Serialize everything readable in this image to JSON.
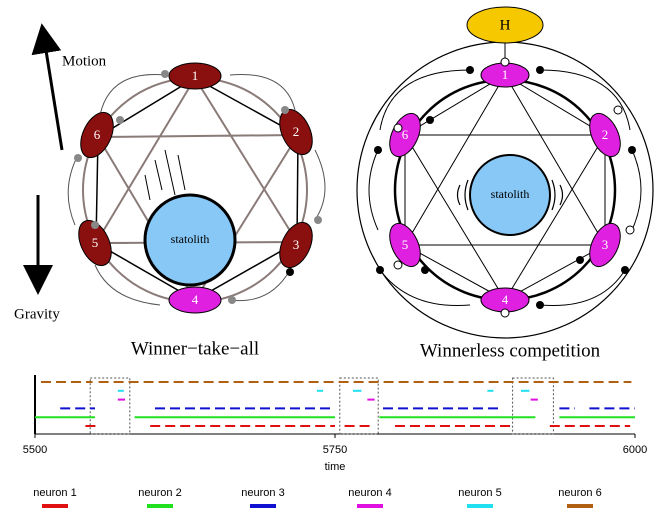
{
  "labels": {
    "motion": "Motion",
    "gravity": "Gravity"
  },
  "left_diagram": {
    "caption": "Winner−take−all",
    "statolith": "statolith",
    "neurons": [
      "1",
      "2",
      "3",
      "4",
      "5",
      "6"
    ]
  },
  "right_diagram": {
    "caption": "Winnerless competition",
    "statolith": "statolith",
    "hub": "H",
    "neurons": [
      "1",
      "2",
      "3",
      "4",
      "5",
      "6"
    ]
  },
  "raster": {
    "xlabel": "time",
    "xlim": [
      5500,
      6000
    ],
    "xticks": [
      5500,
      5750,
      6000
    ],
    "windows": [
      [
        5546,
        5579
      ],
      [
        5754,
        5786
      ],
      [
        5898,
        5932
      ]
    ],
    "series": [
      {
        "name": "neuron 1",
        "color": "#e01010",
        "dashed": true,
        "intervals": [
          [
            5542,
            5554
          ],
          [
            5596,
            5750
          ],
          [
            5758,
            5783
          ],
          [
            5800,
            5896
          ],
          [
            5929,
            5996
          ]
        ]
      },
      {
        "name": "neuron 2",
        "color": "#20e020",
        "dashed": false,
        "intervals": [
          [
            5500,
            5550
          ],
          [
            5583,
            5750
          ],
          [
            5787,
            5917
          ],
          [
            5937,
            6000
          ]
        ]
      },
      {
        "name": "neuron 3",
        "color": "#1010d0",
        "dashed": true,
        "intervals": [
          [
            5521,
            5550
          ],
          [
            5600,
            5746
          ],
          [
            5790,
            5887
          ],
          [
            5937,
            5950
          ],
          [
            5962,
            6000
          ]
        ]
      },
      {
        "name": "neuron 4",
        "color": "#e010e0",
        "dashed": false,
        "intervals": [
          [
            5569,
            5575
          ],
          [
            5777,
            5783
          ],
          [
            5913,
            5919
          ]
        ]
      },
      {
        "name": "neuron 5",
        "color": "#20e0f0",
        "dashed": false,
        "intervals": [
          [
            5569,
            5574
          ],
          [
            5735,
            5740
          ],
          [
            5765,
            5772
          ],
          [
            5877,
            5882
          ],
          [
            5905,
            5912
          ]
        ]
      },
      {
        "name": "neuron 6",
        "color": "#b06010",
        "dashed": true,
        "intervals": [
          [
            5505,
            5548
          ],
          [
            5553,
            5997
          ]
        ]
      }
    ]
  }
}
